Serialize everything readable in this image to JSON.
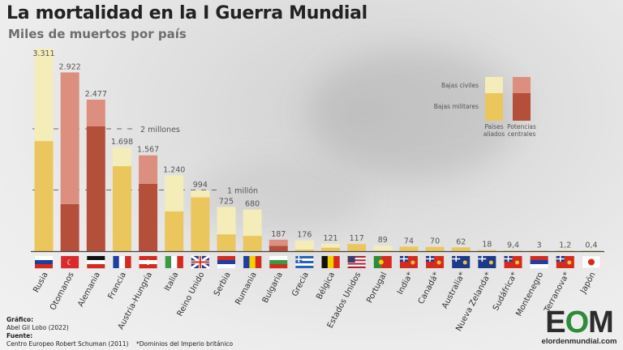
{
  "title": "La mortalidad en la I Guerra Mundial",
  "subtitle": "Miles de muertos por país",
  "credits": {
    "grafico_label": "Gráfico:",
    "grafico_value": "Abel Gil Lobo (2022)",
    "fuente_label": "Fuente:",
    "fuente_value": "Centro Europeo Robert Schuman (2011)",
    "footnote": "*Dominios del Imperio británico"
  },
  "logo": {
    "text": "EOM",
    "url": "elordenmundial.com"
  },
  "chart_data": {
    "type": "bar",
    "stacked": true,
    "title": "La mortalidad en la I Guerra Mundial",
    "subtitle": "Miles de muertos por país",
    "ylim": [
      0,
      3400
    ],
    "reference_lines": [
      {
        "value": 2000,
        "label": "2 millones"
      },
      {
        "value": 1000,
        "label": "1 millón"
      }
    ],
    "legend": {
      "placement": "top-right",
      "rows": [
        "Bajas civiles",
        "Bajas militares"
      ],
      "columns": [
        "Países aliados",
        "Potencias centrales"
      ]
    },
    "colors": {
      "allied_civil": "#f4ecb9",
      "allied_military": "#ebc65c",
      "central_civil": "#dc8f7e",
      "central_military": "#b4503a"
    },
    "categories": [
      "Rusia",
      "Otomanos",
      "Alemania",
      "Francia",
      "Austria-Hungría",
      "Italia",
      "Reino Unido",
      "Serbia",
      "Rumania",
      "Bulgaria",
      "Grecia",
      "Bélgica",
      "Estados Unidos",
      "Portugal",
      "India*",
      "Canadá*",
      "Australia*",
      "Nueva Zelanda*",
      "Sudáfrica*",
      "Montenegro",
      "Terranova*",
      "Japón"
    ],
    "value_labels": [
      "3.311",
      "2.922",
      "2.477",
      "1.698",
      "1.567",
      "1.240",
      "994",
      "725",
      "680",
      "187",
      "176",
      "121",
      "117",
      "89",
      "74",
      "70",
      "62",
      "18",
      "9,4",
      "3",
      "1,2",
      "0,4"
    ],
    "totals": [
      3311,
      2922,
      2477,
      1698,
      1567,
      1240,
      994,
      725,
      680,
      187,
      176,
      121,
      117,
      89,
      74,
      70,
      62,
      18,
      9.4,
      3,
      1.2,
      0.4
    ],
    "side": [
      "allied",
      "central",
      "central",
      "allied",
      "central",
      "allied",
      "allied",
      "allied",
      "allied",
      "central",
      "allied",
      "allied",
      "allied",
      "allied",
      "allied",
      "allied",
      "allied",
      "allied",
      "allied",
      "allied",
      "allied",
      "allied"
    ],
    "series": [
      {
        "name": "Bajas militares",
        "values": [
          1800,
          770,
          2040,
          1390,
          1100,
          650,
          880,
          275,
          250,
          87,
          26,
          58,
          117,
          7,
          74,
          70,
          62,
          18,
          9.4,
          3,
          1.2,
          0.4
        ]
      },
      {
        "name": "Bajas civiles",
        "values": [
          1511,
          2152,
          437,
          308,
          467,
          590,
          114,
          450,
          430,
          100,
          150,
          63,
          0,
          82,
          0,
          0,
          0,
          0,
          0,
          0,
          0,
          0
        ]
      }
    ],
    "flags": [
      {
        "dir": "h",
        "colors": [
          "#ffffff",
          "#1c3fa0",
          "#d52b1e"
        ]
      },
      {
        "dir": "h",
        "colors": [
          "#d92b2b"
        ],
        "emblem": "☾"
      },
      {
        "dir": "h",
        "colors": [
          "#111111",
          "#ffffff",
          "#d52b1e"
        ]
      },
      {
        "dir": "v",
        "colors": [
          "#1c3fa0",
          "#ffffff",
          "#d52b1e"
        ]
      },
      {
        "dir": "h",
        "colors": [
          "#d52b1e",
          "#ffffff",
          "#d52b1e"
        ],
        "emblem": "✚"
      },
      {
        "dir": "v",
        "colors": [
          "#3a9a44",
          "#ffffff",
          "#d52b1e"
        ]
      },
      {
        "dir": "uk",
        "colors": [
          "#1c3a8a",
          "#ffffff",
          "#d52b1e"
        ]
      },
      {
        "dir": "h",
        "colors": [
          "#d52b1e",
          "#1c3fa0",
          "#ffffff"
        ]
      },
      {
        "dir": "v",
        "colors": [
          "#1c3fa0",
          "#f5d000",
          "#d52b1e"
        ]
      },
      {
        "dir": "h",
        "colors": [
          "#ffffff",
          "#3a9a44",
          "#d52b1e"
        ]
      },
      {
        "dir": "cross",
        "colors": [
          "#2a62b5",
          "#ffffff"
        ]
      },
      {
        "dir": "v",
        "colors": [
          "#111111",
          "#f5d000",
          "#d52b1e"
        ]
      },
      {
        "dir": "us",
        "colors": [
          "#b22234",
          "#ffffff",
          "#3c3b6e"
        ]
      },
      {
        "dir": "pt",
        "colors": [
          "#2e8b3a",
          "#d52b1e"
        ]
      },
      {
        "dir": "ensign",
        "colors": [
          "#d52b1e",
          "#1c3a8a"
        ]
      },
      {
        "dir": "ensign",
        "colors": [
          "#d52b1e",
          "#1c3a8a"
        ]
      },
      {
        "dir": "ensign",
        "colors": [
          "#1c3a8a",
          "#d52b1e"
        ]
      },
      {
        "dir": "ensign",
        "colors": [
          "#1c3a8a",
          "#d52b1e"
        ]
      },
      {
        "dir": "ensign",
        "colors": [
          "#d52b1e",
          "#1c3a8a"
        ]
      },
      {
        "dir": "h",
        "colors": [
          "#d52b1e",
          "#1c3fa0",
          "#ffffff"
        ]
      },
      {
        "dir": "ensign",
        "colors": [
          "#d52b1e",
          "#1c3a8a"
        ]
      },
      {
        "dir": "jp",
        "colors": [
          "#ffffff",
          "#d52b1e"
        ]
      }
    ]
  }
}
